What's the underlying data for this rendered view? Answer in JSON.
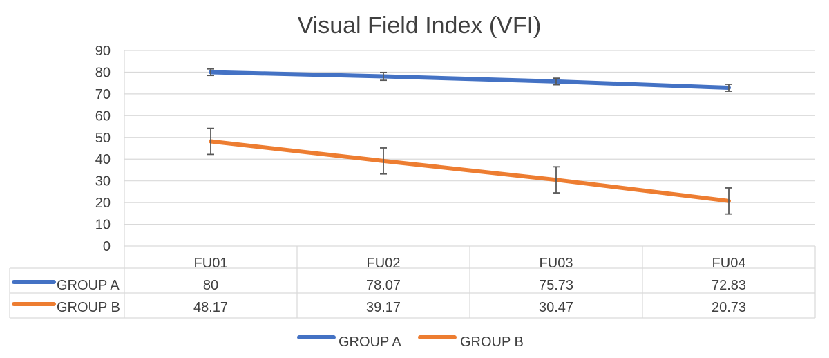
{
  "chart_data": {
    "type": "line",
    "title": "Visual Field Index  (VFI)",
    "categories": [
      "FU01",
      "FU02",
      "FU03",
      "FU04"
    ],
    "ylim": [
      0,
      90
    ],
    "yticks": [
      "0",
      "10",
      "20",
      "30",
      "40",
      "50",
      "60",
      "70",
      "80",
      "90"
    ],
    "grid": true,
    "legend_position": "bottom",
    "data_table": true,
    "series": [
      {
        "name": "GROUP A",
        "color": "#4472C4",
        "values": [
          80,
          78.07,
          75.73,
          72.83
        ],
        "labels": [
          "80",
          "78.07",
          "75.73",
          "72.83"
        ],
        "error": [
          1.5,
          1.8,
          1.5,
          1.6
        ]
      },
      {
        "name": "GROUP B",
        "color": "#ED7D31",
        "values": [
          48.17,
          39.17,
          30.47,
          20.73
        ],
        "labels": [
          "48.17",
          "39.17",
          "30.47",
          "20.73"
        ],
        "error": [
          6,
          6,
          6,
          6
        ]
      }
    ]
  }
}
